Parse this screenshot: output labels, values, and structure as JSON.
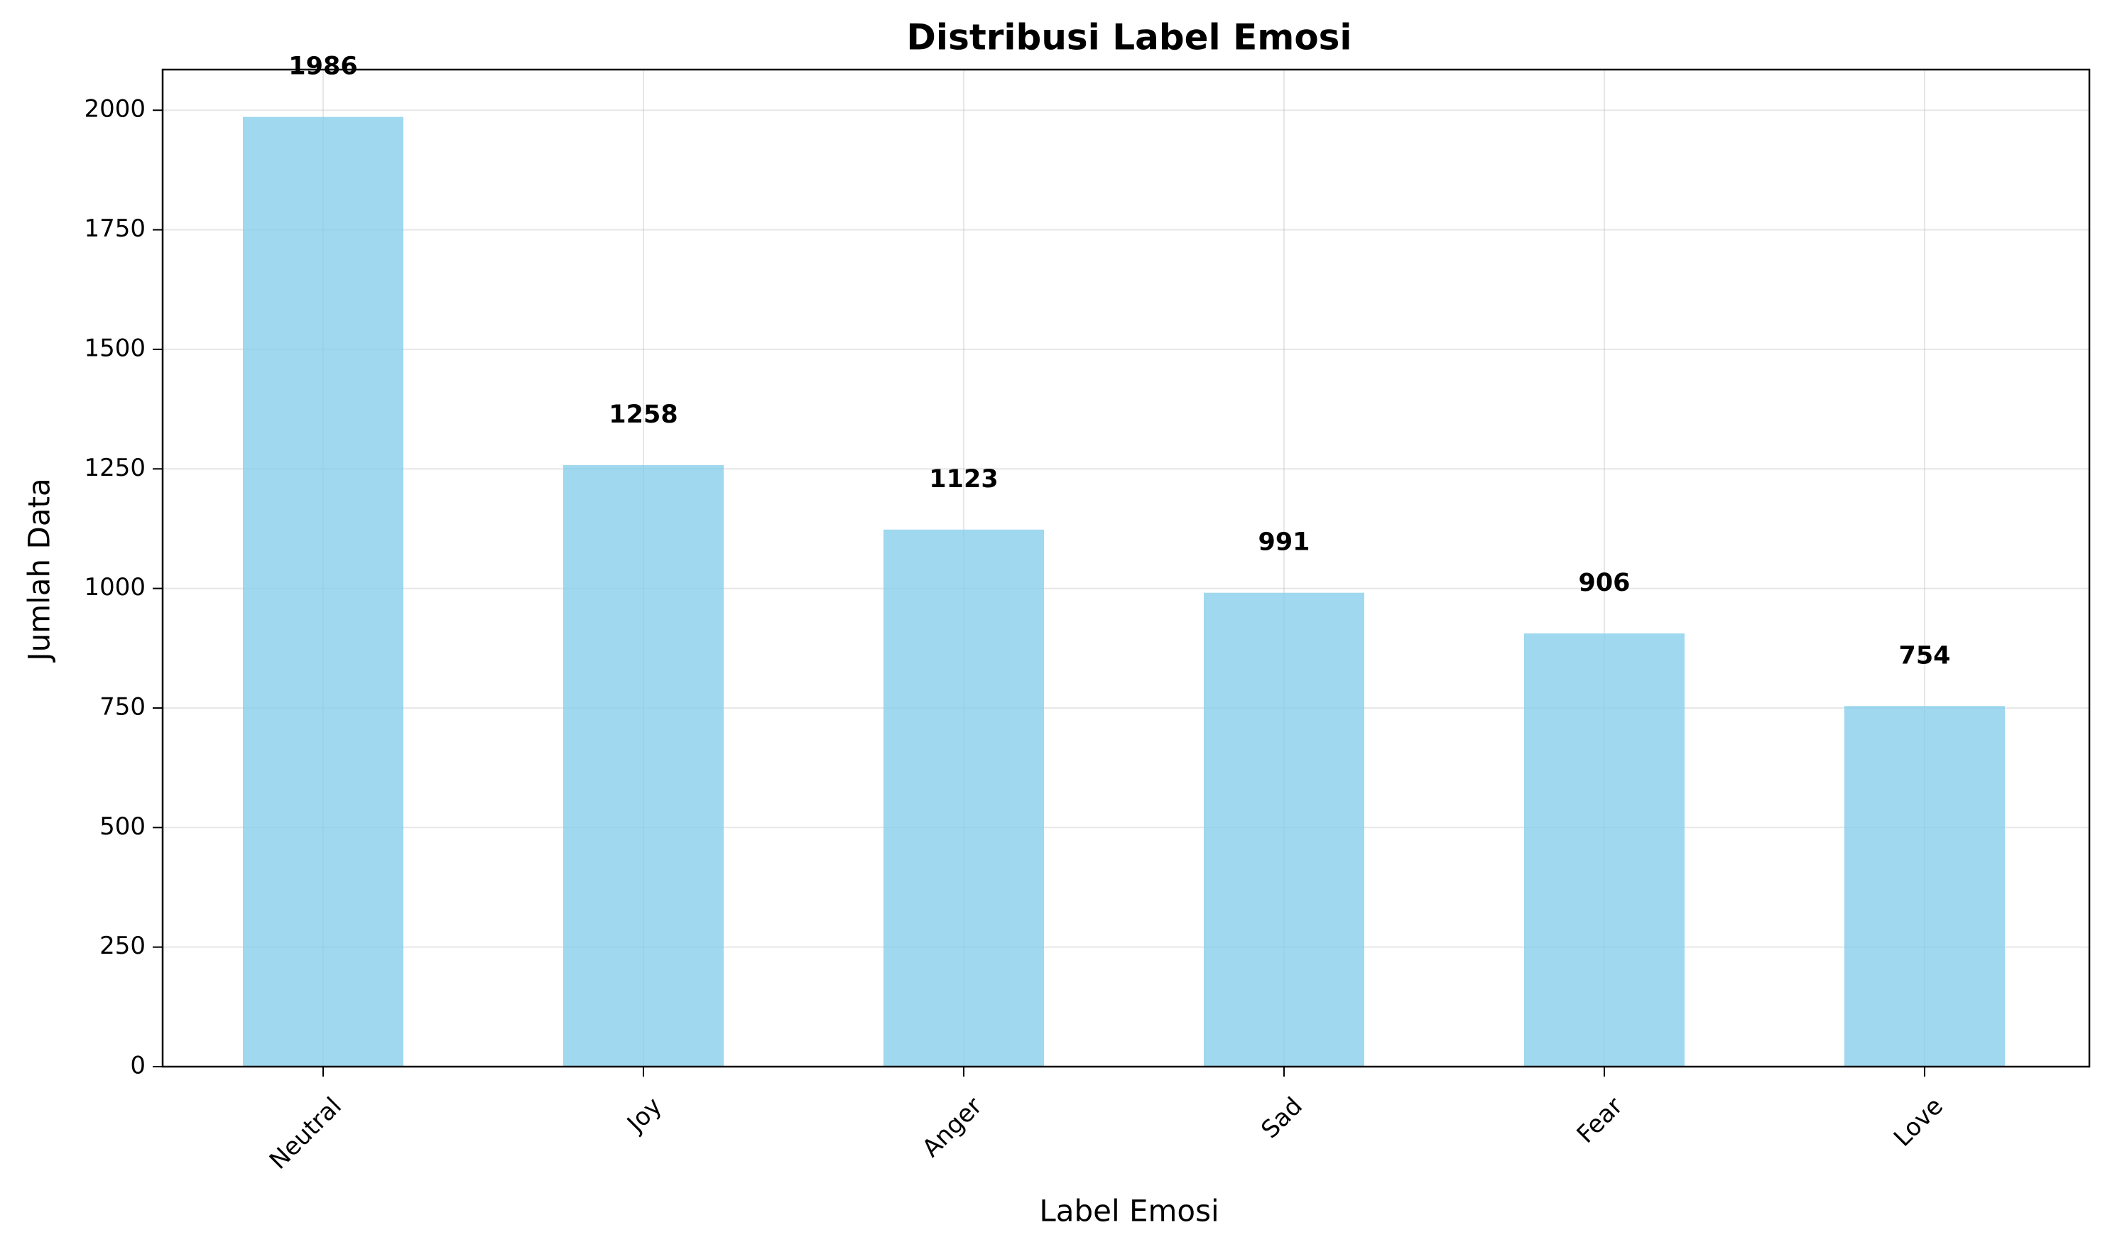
{
  "chart_data": {
    "type": "bar",
    "title": "Distribusi Label Emosi",
    "xlabel": "Label Emosi",
    "ylabel": "Jumlah Data",
    "categories": [
      "Neutral",
      "Joy",
      "Anger",
      "Sad",
      "Fear",
      "Love"
    ],
    "values": [
      1986,
      1258,
      1123,
      991,
      906,
      754
    ],
    "data_labels": [
      "1986",
      "1258",
      "1123",
      "991",
      "906",
      "754"
    ],
    "ylim": [
      0,
      2085
    ],
    "yticks": [
      0,
      250,
      500,
      750,
      1000,
      1250,
      1500,
      1750,
      2000
    ],
    "ytick_labels": [
      "0",
      "250",
      "500",
      "750",
      "1000",
      "1250",
      "1500",
      "1750",
      "2000"
    ],
    "grid": true,
    "legend": "none",
    "bar_color": "#87ceeb",
    "bar_opacity": 0.8,
    "grid_color": "#b0b0b0",
    "text_color": "#000000"
  }
}
